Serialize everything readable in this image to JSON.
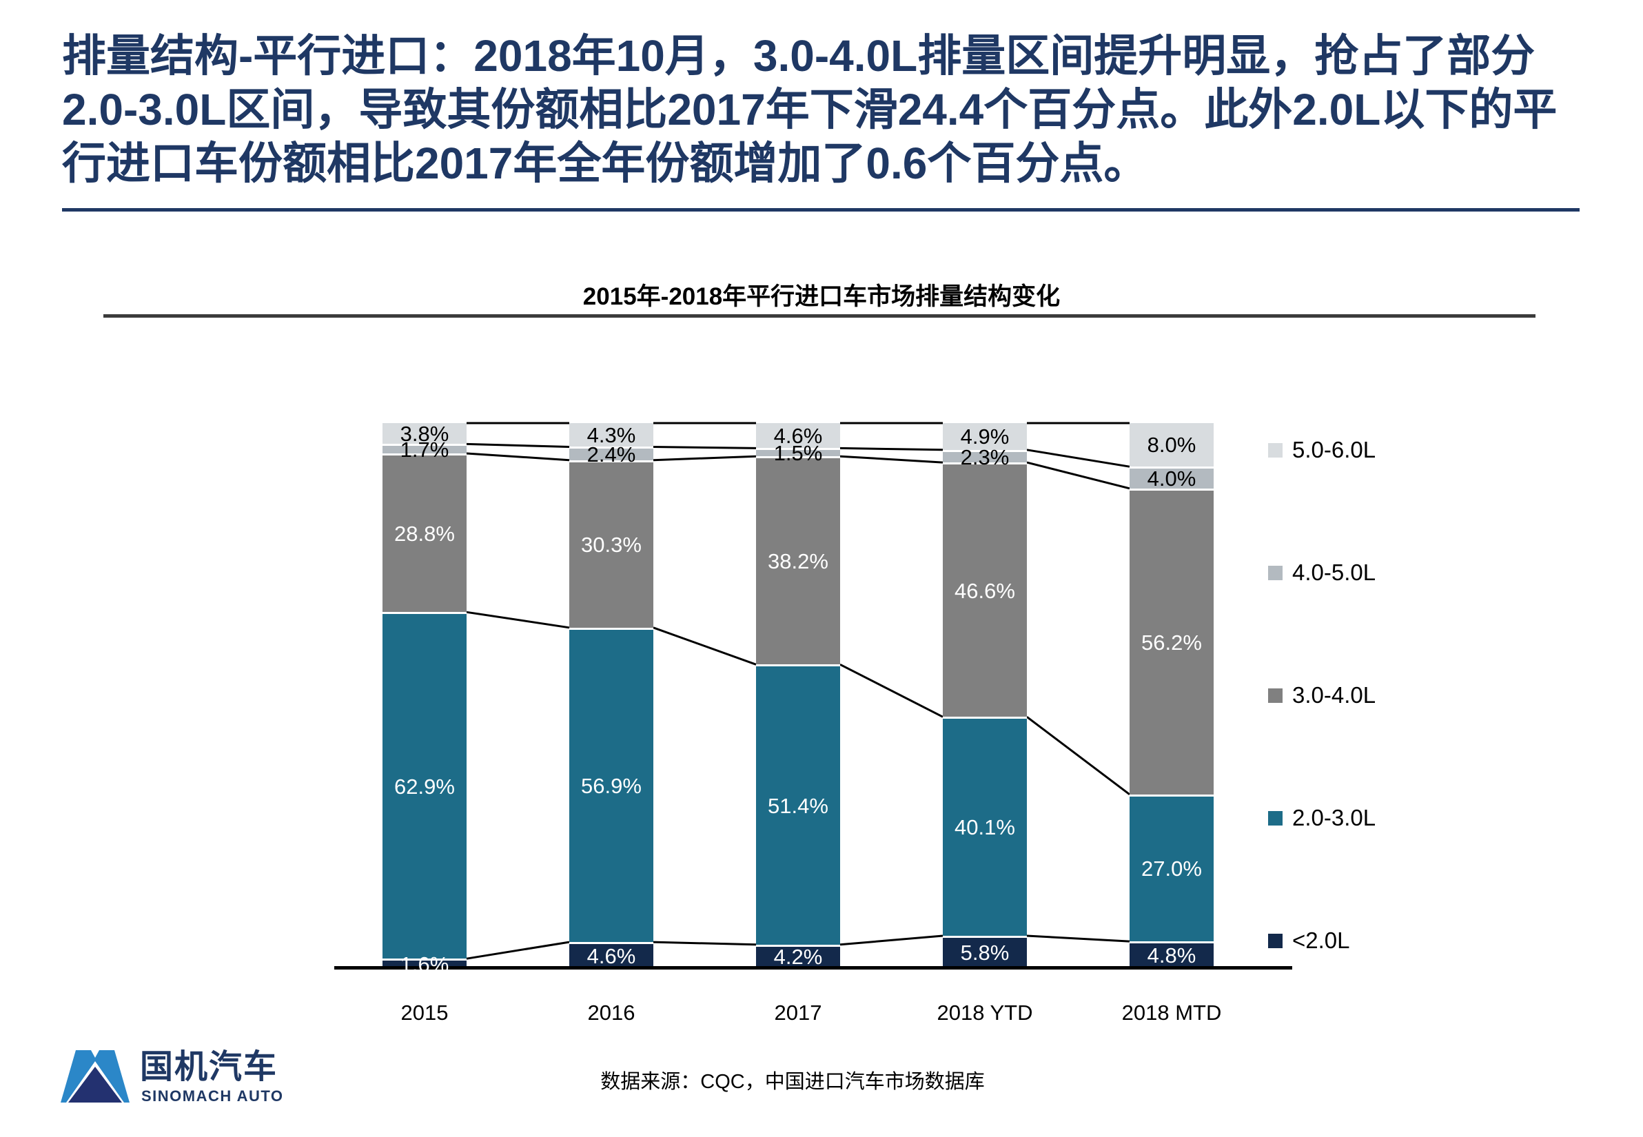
{
  "header": {
    "title_lines": [
      "排量结构-平行进口：2018年10月，3.0-4.0L排量区间提升明显，抢占了部分",
      "2.0-3.0L区间，导致其份额相比2017年下滑24.4个百分点。此外2.0L以下的平",
      "行进口车份额相比2017年全年份额增加了0.6个百分点。"
    ]
  },
  "chart_data": {
    "type": "bar",
    "variant": "stacked-100-percent",
    "title": "2015年-2018年平行进口车市场排量结构变化",
    "categories": [
      "2015",
      "2016",
      "2017",
      "2018 YTD",
      "2018 MTD"
    ],
    "series": [
      {
        "name": "<2.0L",
        "color": "#13294b",
        "label_color": "#ffffff",
        "values": [
          1.6,
          4.6,
          4.2,
          5.8,
          4.8
        ]
      },
      {
        "name": "2.0-3.0L",
        "color": "#1d6c88",
        "label_color": "#ffffff",
        "values": [
          62.9,
          56.9,
          51.4,
          40.1,
          27.0
        ]
      },
      {
        "name": "3.0-4.0L",
        "color": "#808080",
        "label_color": "#ffffff",
        "values": [
          28.8,
          30.3,
          38.2,
          46.6,
          56.2
        ]
      },
      {
        "name": "4.0-5.0L",
        "color": "#b3bac0",
        "label_color": "#000000",
        "values": [
          1.7,
          2.4,
          1.5,
          2.3,
          4.0
        ]
      },
      {
        "name": "5.0-6.0L",
        "color": "#d8dcdf",
        "label_color": "#000000",
        "values": [
          3.8,
          4.3,
          4.6,
          4.9,
          8.0
        ]
      }
    ],
    "legend": [
      "5.0-6.0L",
      "4.0-5.0L",
      "3.0-4.0L",
      "2.0-3.0L",
      "<2.0L"
    ],
    "legend_position": "right",
    "value_suffix": "%",
    "ylim": [
      0,
      100
    ],
    "grid": false,
    "connector_lines": true
  },
  "footer": {
    "source": "数据来源：CQC，中国进口汽车市场数据库",
    "logo_cn": "国机汽车",
    "logo_en": "SINOMACH AUTO"
  },
  "colors": {
    "background": "#ffffff",
    "headline": "#1f3864",
    "header_rule": "#1f3864",
    "chart_title_rule": "#3b3b3b",
    "axis": "#000000",
    "connector": "#000000",
    "logo_light_blue": "#2b87c8",
    "logo_dark_blue": "#233170"
  }
}
